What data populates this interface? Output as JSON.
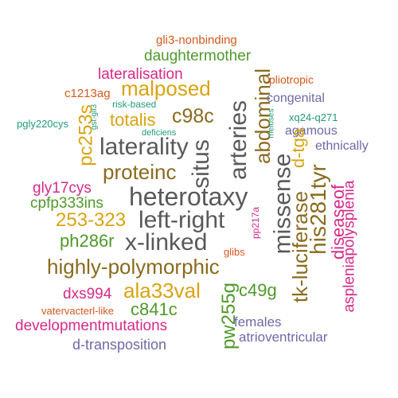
{
  "colors": {
    "gray": "#595959",
    "brown": "#8a6a1e",
    "gold": "#d9a312",
    "green": "#4f9a2a",
    "pink": "#d62a8a",
    "orange": "#d4581a",
    "purple": "#6f69a8",
    "teal": "#229a7a"
  },
  "words": [
    {
      "text": "gli3-nonbinding",
      "color": "#d4581a"
    },
    {
      "text": "daughtermother",
      "color": "#4f9a2a"
    },
    {
      "text": "lateralisation",
      "color": "#d62a8a"
    },
    {
      "text": "abdominal",
      "color": "#8a6a1e"
    },
    {
      "text": "pliotropic",
      "color": "#d4581a"
    },
    {
      "text": "malposed",
      "color": "#d9a312"
    },
    {
      "text": "c1213ag",
      "color": "#d4581a"
    },
    {
      "text": "congenital",
      "color": "#6f69a8"
    },
    {
      "text": "arteries",
      "color": "#595959"
    },
    {
      "text": "c98c",
      "color": "#8a6a1e"
    },
    {
      "text": "risk-based",
      "color": "#229a7a"
    },
    {
      "text": "totalis",
      "color": "#d9a312"
    },
    {
      "text": "xq24-q271",
      "color": "#229a7a"
    },
    {
      "text": "gst-gli3",
      "color": "#229a7a"
    },
    {
      "text": "pgly220cys",
      "color": "#229a7a"
    },
    {
      "text": "deficiens",
      "color": "#229a7a"
    },
    {
      "text": "meioses",
      "color": "#229a7a"
    },
    {
      "text": "agamous",
      "color": "#6f69a8"
    },
    {
      "text": "pc253s",
      "color": "#d9a312"
    },
    {
      "text": "laterality",
      "color": "#595959"
    },
    {
      "text": "situs",
      "color": "#595959"
    },
    {
      "text": "d-tga",
      "color": "#d9a312"
    },
    {
      "text": "ethnically",
      "color": "#6f69a8"
    },
    {
      "text": "proteinc",
      "color": "#8a6a1e"
    },
    {
      "text": "missense",
      "color": "#595959"
    },
    {
      "text": "his281tyr",
      "color": "#8a6a1e"
    },
    {
      "text": "gly17cys",
      "color": "#d62a8a"
    },
    {
      "text": "diseaseof",
      "color": "#d62a8a"
    },
    {
      "text": "aspleniapolysplenia",
      "color": "#d62a8a"
    },
    {
      "text": "heterotaxy",
      "color": "#595959"
    },
    {
      "text": "cpfp333ins",
      "color": "#4f9a2a"
    },
    {
      "text": "253-323",
      "color": "#d9a312"
    },
    {
      "text": "left-right",
      "color": "#595959"
    },
    {
      "text": "pp217a",
      "color": "#d62a8a"
    },
    {
      "text": "tk-luciferase",
      "color": "#8a6a1e"
    },
    {
      "text": "ph286r",
      "color": "#4f9a2a"
    },
    {
      "text": "x-linked",
      "color": "#595959"
    },
    {
      "text": "glibs",
      "color": "#d4581a"
    },
    {
      "text": "highly-polymorphic",
      "color": "#8a6a1e"
    },
    {
      "text": "dxs994",
      "color": "#d62a8a"
    },
    {
      "text": "ala33val",
      "color": "#d9a312"
    },
    {
      "text": "pw255g",
      "color": "#4f9a2a"
    },
    {
      "text": "c49g",
      "color": "#4f9a2a"
    },
    {
      "text": "vatervacterl-like",
      "color": "#d4581a"
    },
    {
      "text": "c841c",
      "color": "#4f9a2a"
    },
    {
      "text": "developmentmutations",
      "color": "#d62a8a"
    },
    {
      "text": "females",
      "color": "#6f69a8"
    },
    {
      "text": "atrioventricular",
      "color": "#6f69a8"
    },
    {
      "text": "d-transposition",
      "color": "#6f69a8"
    }
  ]
}
